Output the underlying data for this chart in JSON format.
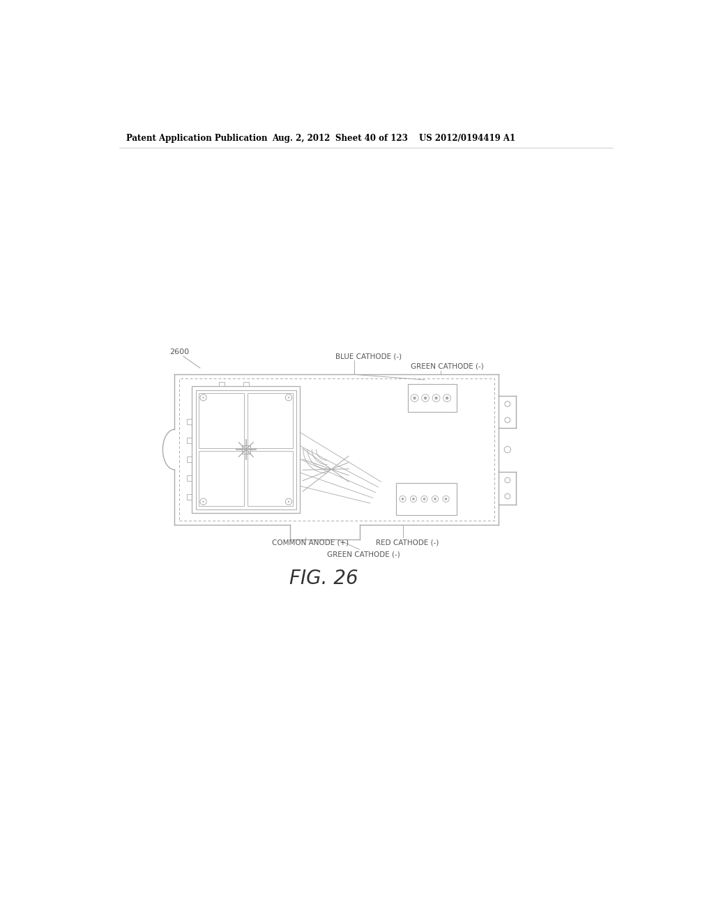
{
  "bg_color": "#ffffff",
  "header_text": "Patent Application Publication",
  "header_date": "Aug. 2, 2012",
  "header_sheet": "Sheet 40 of 123",
  "header_patent": "US 2012/0194419 A1",
  "fig_label": "FIG. 26",
  "ref_num": "2600",
  "label_blue_cathode": "BLUE CATHODE (-)",
  "label_green_cathode_top": "GREEN CATHODE (-)",
  "label_common_anode": "COMMON ANODE (+)",
  "label_red_cathode": "RED CATHODE (-)",
  "label_green_cathode_bot": "GREEN CATHODE (-)",
  "line_color": "#aaaaaa",
  "text_color": "#555555",
  "header_color": "#000000",
  "fig_color": "#333333"
}
